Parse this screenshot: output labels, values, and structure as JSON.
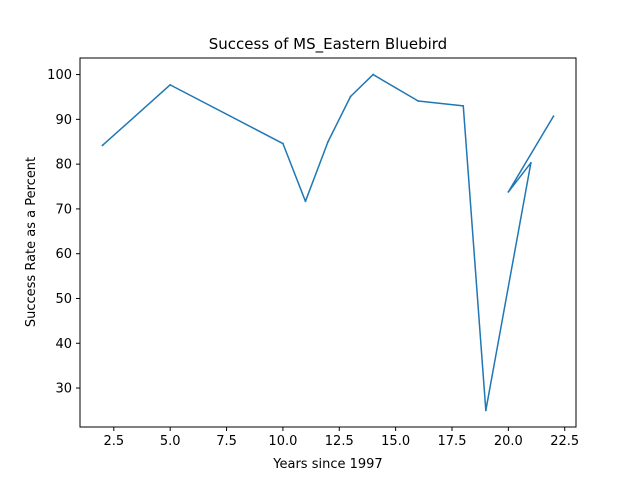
{
  "chart_data": {
    "type": "line",
    "title": "Success of MS_Eastern Bluebird",
    "xlabel": "Years since 1997",
    "ylabel": "Success Rate as a Percent",
    "xlim": [
      1.0,
      23.0
    ],
    "ylim": [
      21.3,
      103.7
    ],
    "xticks": [
      2.5,
      5.0,
      7.5,
      10.0,
      12.5,
      15.0,
      17.5,
      20.0,
      22.5
    ],
    "xtick_labels": [
      "2.5",
      "5.0",
      "7.5",
      "10.0",
      "12.5",
      "15.0",
      "17.5",
      "20.0",
      "22.5"
    ],
    "yticks": [
      30,
      40,
      50,
      60,
      70,
      80,
      90,
      100
    ],
    "ytick_labels": [
      "30",
      "40",
      "50",
      "60",
      "70",
      "80",
      "90",
      "100"
    ],
    "grid": false,
    "series": [
      {
        "color": "#1f77b4",
        "x": [
          2,
          5,
          10,
          11,
          12,
          13,
          14,
          16,
          18,
          19,
          21,
          20,
          22
        ],
        "y": [
          84.2,
          97.7,
          84.6,
          71.7,
          85.0,
          95.1,
          100.0,
          94.1,
          93.0,
          25.0,
          80.3,
          73.8,
          90.7
        ]
      }
    ]
  }
}
